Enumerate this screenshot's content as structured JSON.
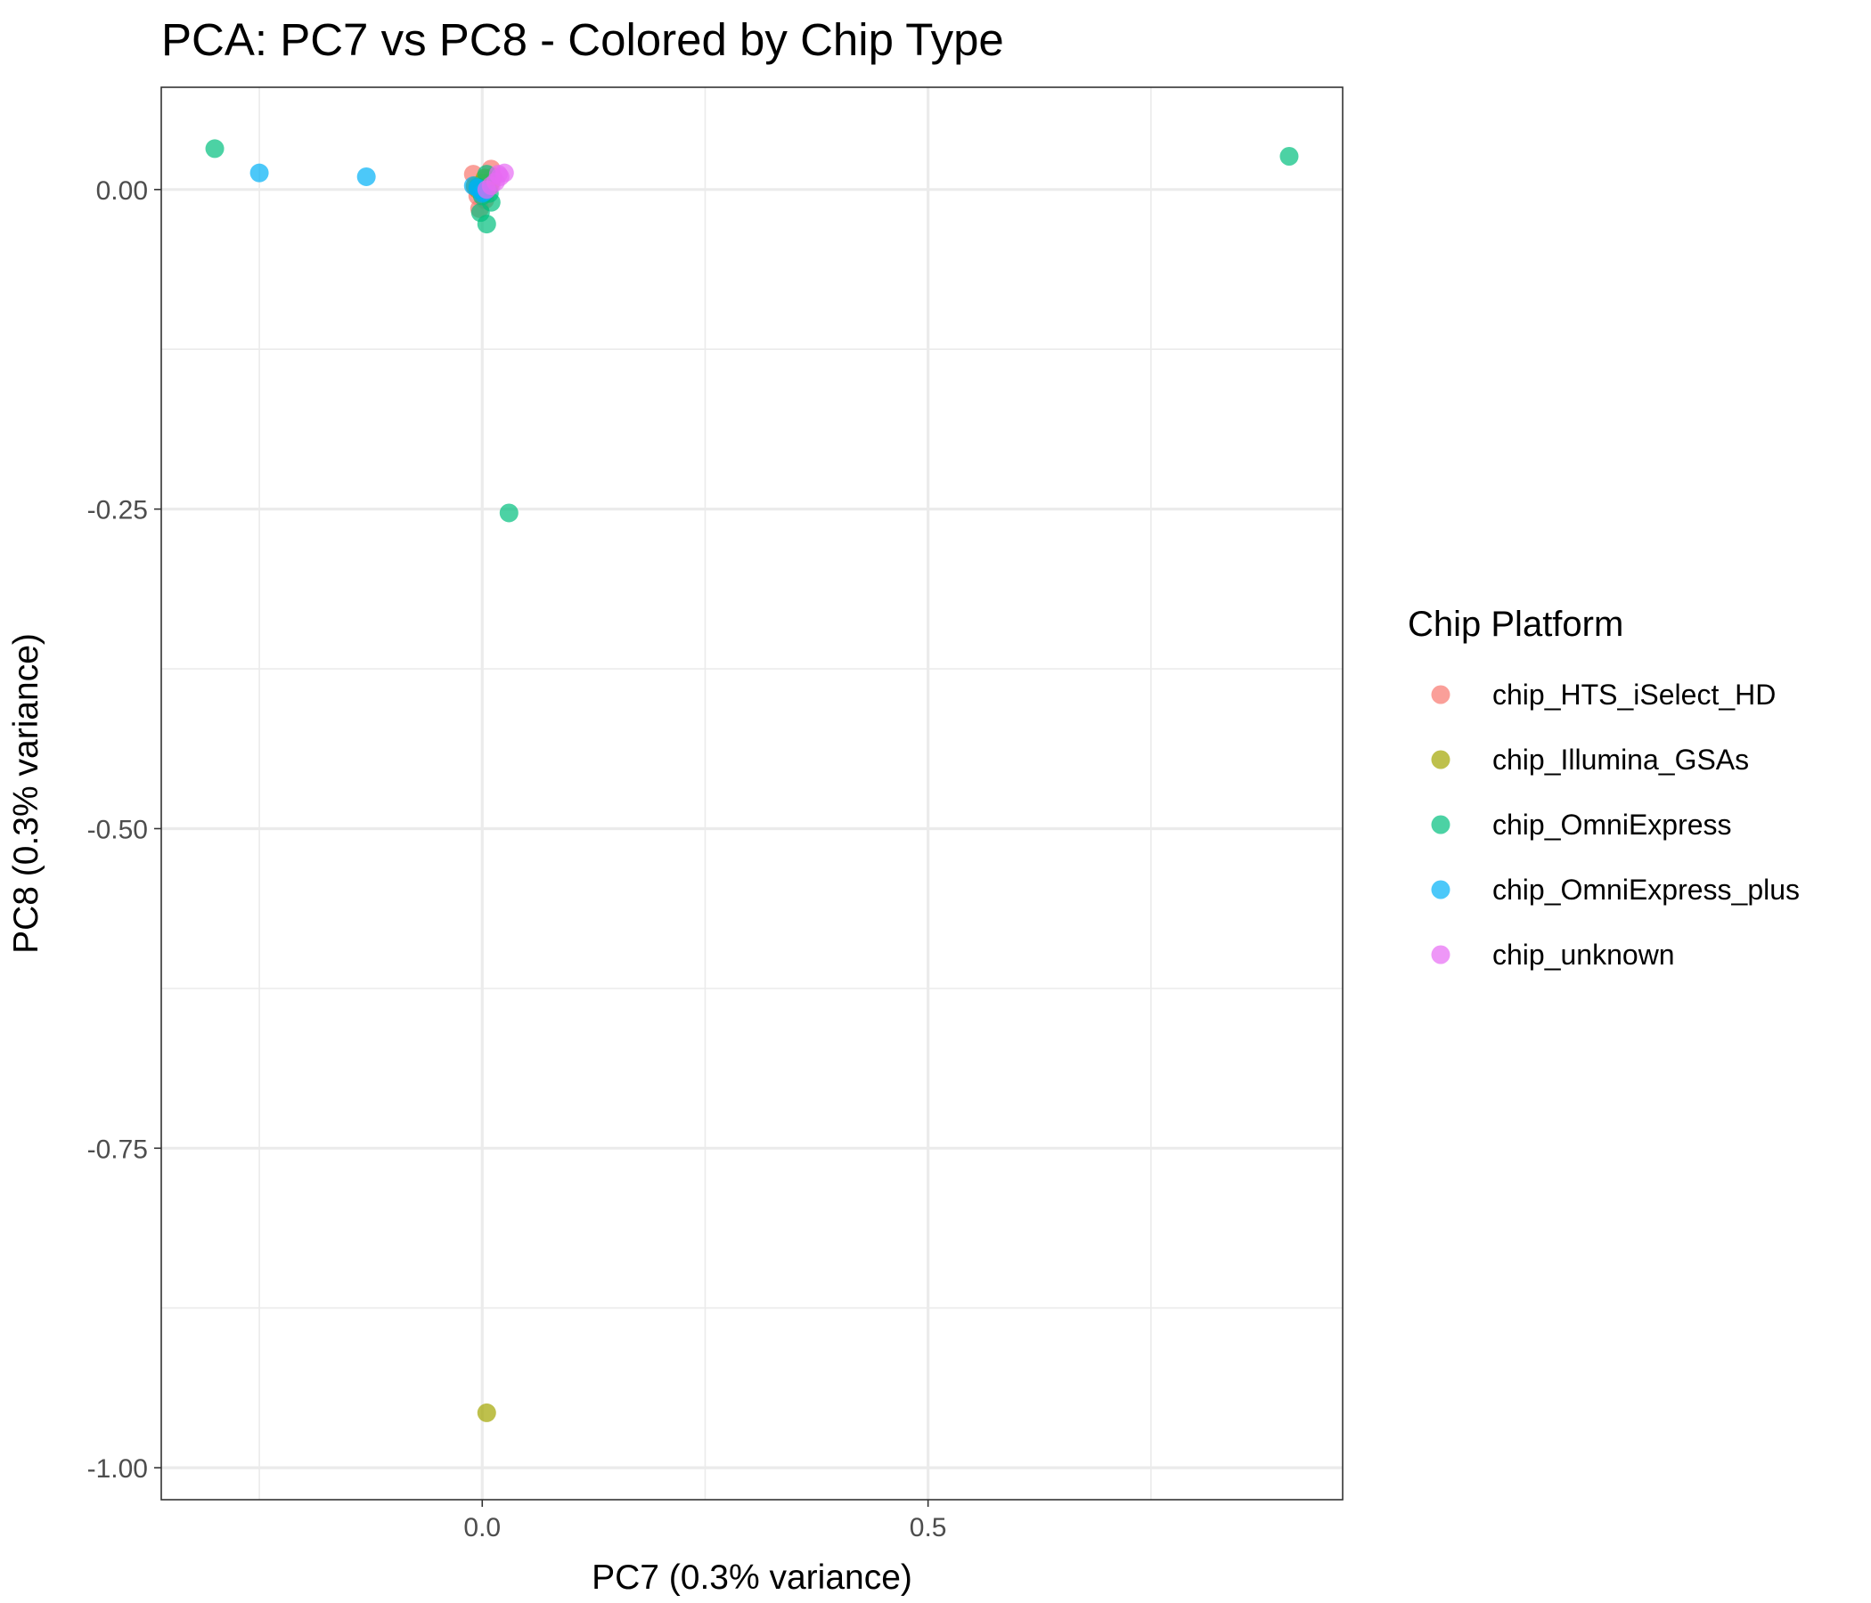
{
  "chart_data": {
    "type": "scatter",
    "title": "PCA: PC7 vs PC8 - Colored by Chip Type",
    "xlabel": "PC7 (0.3% variance)",
    "ylabel": "PC8 (0.3% variance)",
    "xlim": [
      -0.36,
      0.965
    ],
    "ylim": [
      -1.025,
      0.08
    ],
    "x_ticks": [
      0.0,
      0.5
    ],
    "x_tick_labels": [
      "0.0",
      "0.5"
    ],
    "y_ticks": [
      0.0,
      -0.25,
      -0.5,
      -0.75,
      -1.0
    ],
    "y_tick_labels": [
      "0.00",
      "-0.25",
      "-0.50",
      "-0.75",
      "-1.00"
    ],
    "grid": true,
    "legend": {
      "title": "Chip Platform",
      "placement": "right",
      "entries": [
        "chip_HTS_iSelect_HD",
        "chip_Illumina_GSAs",
        "chip_OmniExpress",
        "chip_OmniExpress_plus",
        "chip_unknown"
      ]
    },
    "point_alpha": 0.7,
    "series": [
      {
        "name": "chip_HTS_iSelect_HD",
        "color": "#F8766D",
        "points": [
          [
            -0.01,
            0.012
          ],
          [
            0.01,
            0.016
          ],
          [
            0.005,
            0.008
          ],
          [
            -0.005,
            -0.005
          ],
          [
            -0.003,
            -0.015
          ],
          [
            0.0,
            0.003
          ],
          [
            0.012,
            0.01
          ],
          [
            -0.008,
            0.002
          ],
          [
            0.003,
            -0.008
          ]
        ]
      },
      {
        "name": "chip_Illumina_GSAs",
        "color": "#A3A500",
        "points": [
          [
            0.005,
            -0.957
          ],
          [
            0.0,
            0.005
          ],
          [
            0.008,
            0.002
          ],
          [
            -0.005,
            0.0
          ],
          [
            0.01,
            0.006
          ],
          [
            0.003,
            0.009
          ],
          [
            -0.008,
            0.003
          ]
        ]
      },
      {
        "name": "chip_OmniExpress",
        "color": "#00BF7D",
        "points": [
          [
            -0.3,
            0.032
          ],
          [
            0.905,
            0.026
          ],
          [
            0.03,
            -0.253
          ],
          [
            0.005,
            -0.027
          ],
          [
            -0.002,
            -0.018
          ],
          [
            0.01,
            -0.01
          ],
          [
            0.0,
            -0.005
          ],
          [
            0.005,
            0.012
          ],
          [
            -0.005,
            0.002
          ],
          [
            0.008,
            -0.003
          ]
        ]
      },
      {
        "name": "chip_OmniExpress_plus",
        "color": "#00B0F6",
        "points": [
          [
            -0.25,
            0.013
          ],
          [
            -0.13,
            0.01
          ],
          [
            0.0,
            -0.003
          ],
          [
            -0.005,
            0.001
          ],
          [
            -0.01,
            0.003
          ],
          [
            0.002,
            -0.002
          ]
        ]
      },
      {
        "name": "chip_unknown",
        "color": "#E76BF3",
        "points": [
          [
            0.025,
            0.013
          ],
          [
            0.02,
            0.01
          ],
          [
            0.015,
            0.006
          ],
          [
            0.01,
            0.003
          ],
          [
            0.005,
            0.0
          ],
          [
            0.018,
            0.012
          ]
        ]
      }
    ]
  }
}
